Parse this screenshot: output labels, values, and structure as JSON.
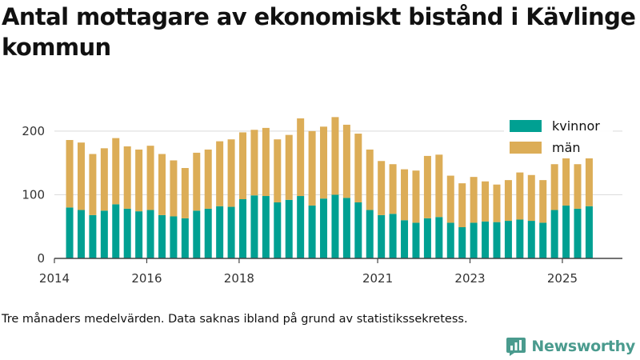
{
  "chart_data": {
    "type": "bar",
    "stacked": true,
    "title": "Antal mottagare av ekonomiskt bistånd i Kävlinge kommun",
    "caption": "Tre månaders medelvärden. Data saknas ibland på grund av statistikssekretess.",
    "xlabel": "",
    "ylabel": "",
    "ylim": [
      0,
      230
    ],
    "yticks": [
      0,
      100,
      200
    ],
    "xlim": [
      2014.0,
      2026.3
    ],
    "xticks": [
      2014,
      2016,
      2018,
      2021,
      2023,
      2025
    ],
    "legend_position": "top-right",
    "x": [
      2014.33,
      2014.58,
      2014.83,
      2015.08,
      2015.33,
      2015.58,
      2015.83,
      2016.08,
      2016.33,
      2016.58,
      2016.83,
      2017.08,
      2017.33,
      2017.58,
      2017.83,
      2018.08,
      2018.33,
      2018.58,
      2018.83,
      2019.08,
      2019.33,
      2019.58,
      2019.83,
      2020.08,
      2020.33,
      2020.58,
      2020.83,
      2021.08,
      2021.33,
      2021.58,
      2021.83,
      2022.08,
      2022.33,
      2022.58,
      2022.83,
      2023.08,
      2023.33,
      2023.58,
      2023.83,
      2024.08,
      2024.33,
      2024.58,
      2024.83,
      2025.08,
      2025.33,
      2025.58
    ],
    "series": [
      {
        "name": "kvinnor",
        "color": "#00a092",
        "values": [
          80,
          76,
          68,
          75,
          85,
          78,
          74,
          76,
          68,
          66,
          63,
          75,
          78,
          82,
          81,
          93,
          99,
          98,
          88,
          92,
          98,
          83,
          94,
          100,
          95,
          88,
          76,
          68,
          70,
          60,
          56,
          63,
          65,
          56,
          49,
          56,
          58,
          57,
          59,
          61,
          59,
          56,
          76,
          83,
          78,
          82
        ]
      },
      {
        "name": "män",
        "color": "#dcad57",
        "values": [
          106,
          106,
          96,
          98,
          104,
          98,
          97,
          101,
          96,
          88,
          79,
          91,
          93,
          102,
          106,
          105,
          103,
          107,
          99,
          102,
          122,
          117,
          113,
          122,
          115,
          108,
          95,
          85,
          78,
          80,
          82,
          98,
          98,
          74,
          69,
          72,
          63,
          59,
          64,
          74,
          72,
          67,
          72,
          75,
          70,
          76
        ]
      }
    ]
  },
  "branding": {
    "name": "Newsworthy"
  }
}
